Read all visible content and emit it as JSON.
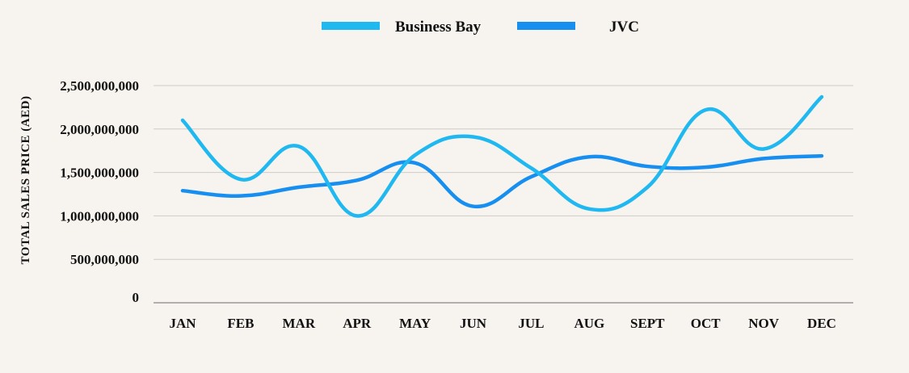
{
  "chart_data": {
    "type": "line",
    "title": "",
    "xlabel": "",
    "ylabel": "TOTAL SALES PRICE (AED)",
    "categories": [
      "JAN",
      "FEB",
      "MAR",
      "APR",
      "MAY",
      "JUN",
      "JUL",
      "AUG",
      "SEPT",
      "OCT",
      "NOV",
      "DEC"
    ],
    "ylim": [
      0,
      2500000000
    ],
    "yticks": [
      0,
      500000000,
      1000000000,
      1500000000,
      2000000000,
      2500000000
    ],
    "ytick_labels": [
      "0",
      "500,000,000",
      "1,000,000,000",
      "1,500,000,000",
      "2,000,000,000",
      "2,500,000,000"
    ],
    "grid": true,
    "legend_position": "top-center",
    "series": [
      {
        "name": "Business Bay",
        "color": "#20b8f0",
        "values": [
          2100000000,
          1420000000,
          1800000000,
          1000000000,
          1700000000,
          1910000000,
          1550000000,
          1080000000,
          1330000000,
          2220000000,
          1770000000,
          2370000000
        ]
      },
      {
        "name": "JVC",
        "color": "#168ff0",
        "values": [
          1290000000,
          1230000000,
          1330000000,
          1410000000,
          1610000000,
          1110000000,
          1450000000,
          1680000000,
          1570000000,
          1560000000,
          1660000000,
          1690000000
        ]
      }
    ]
  }
}
